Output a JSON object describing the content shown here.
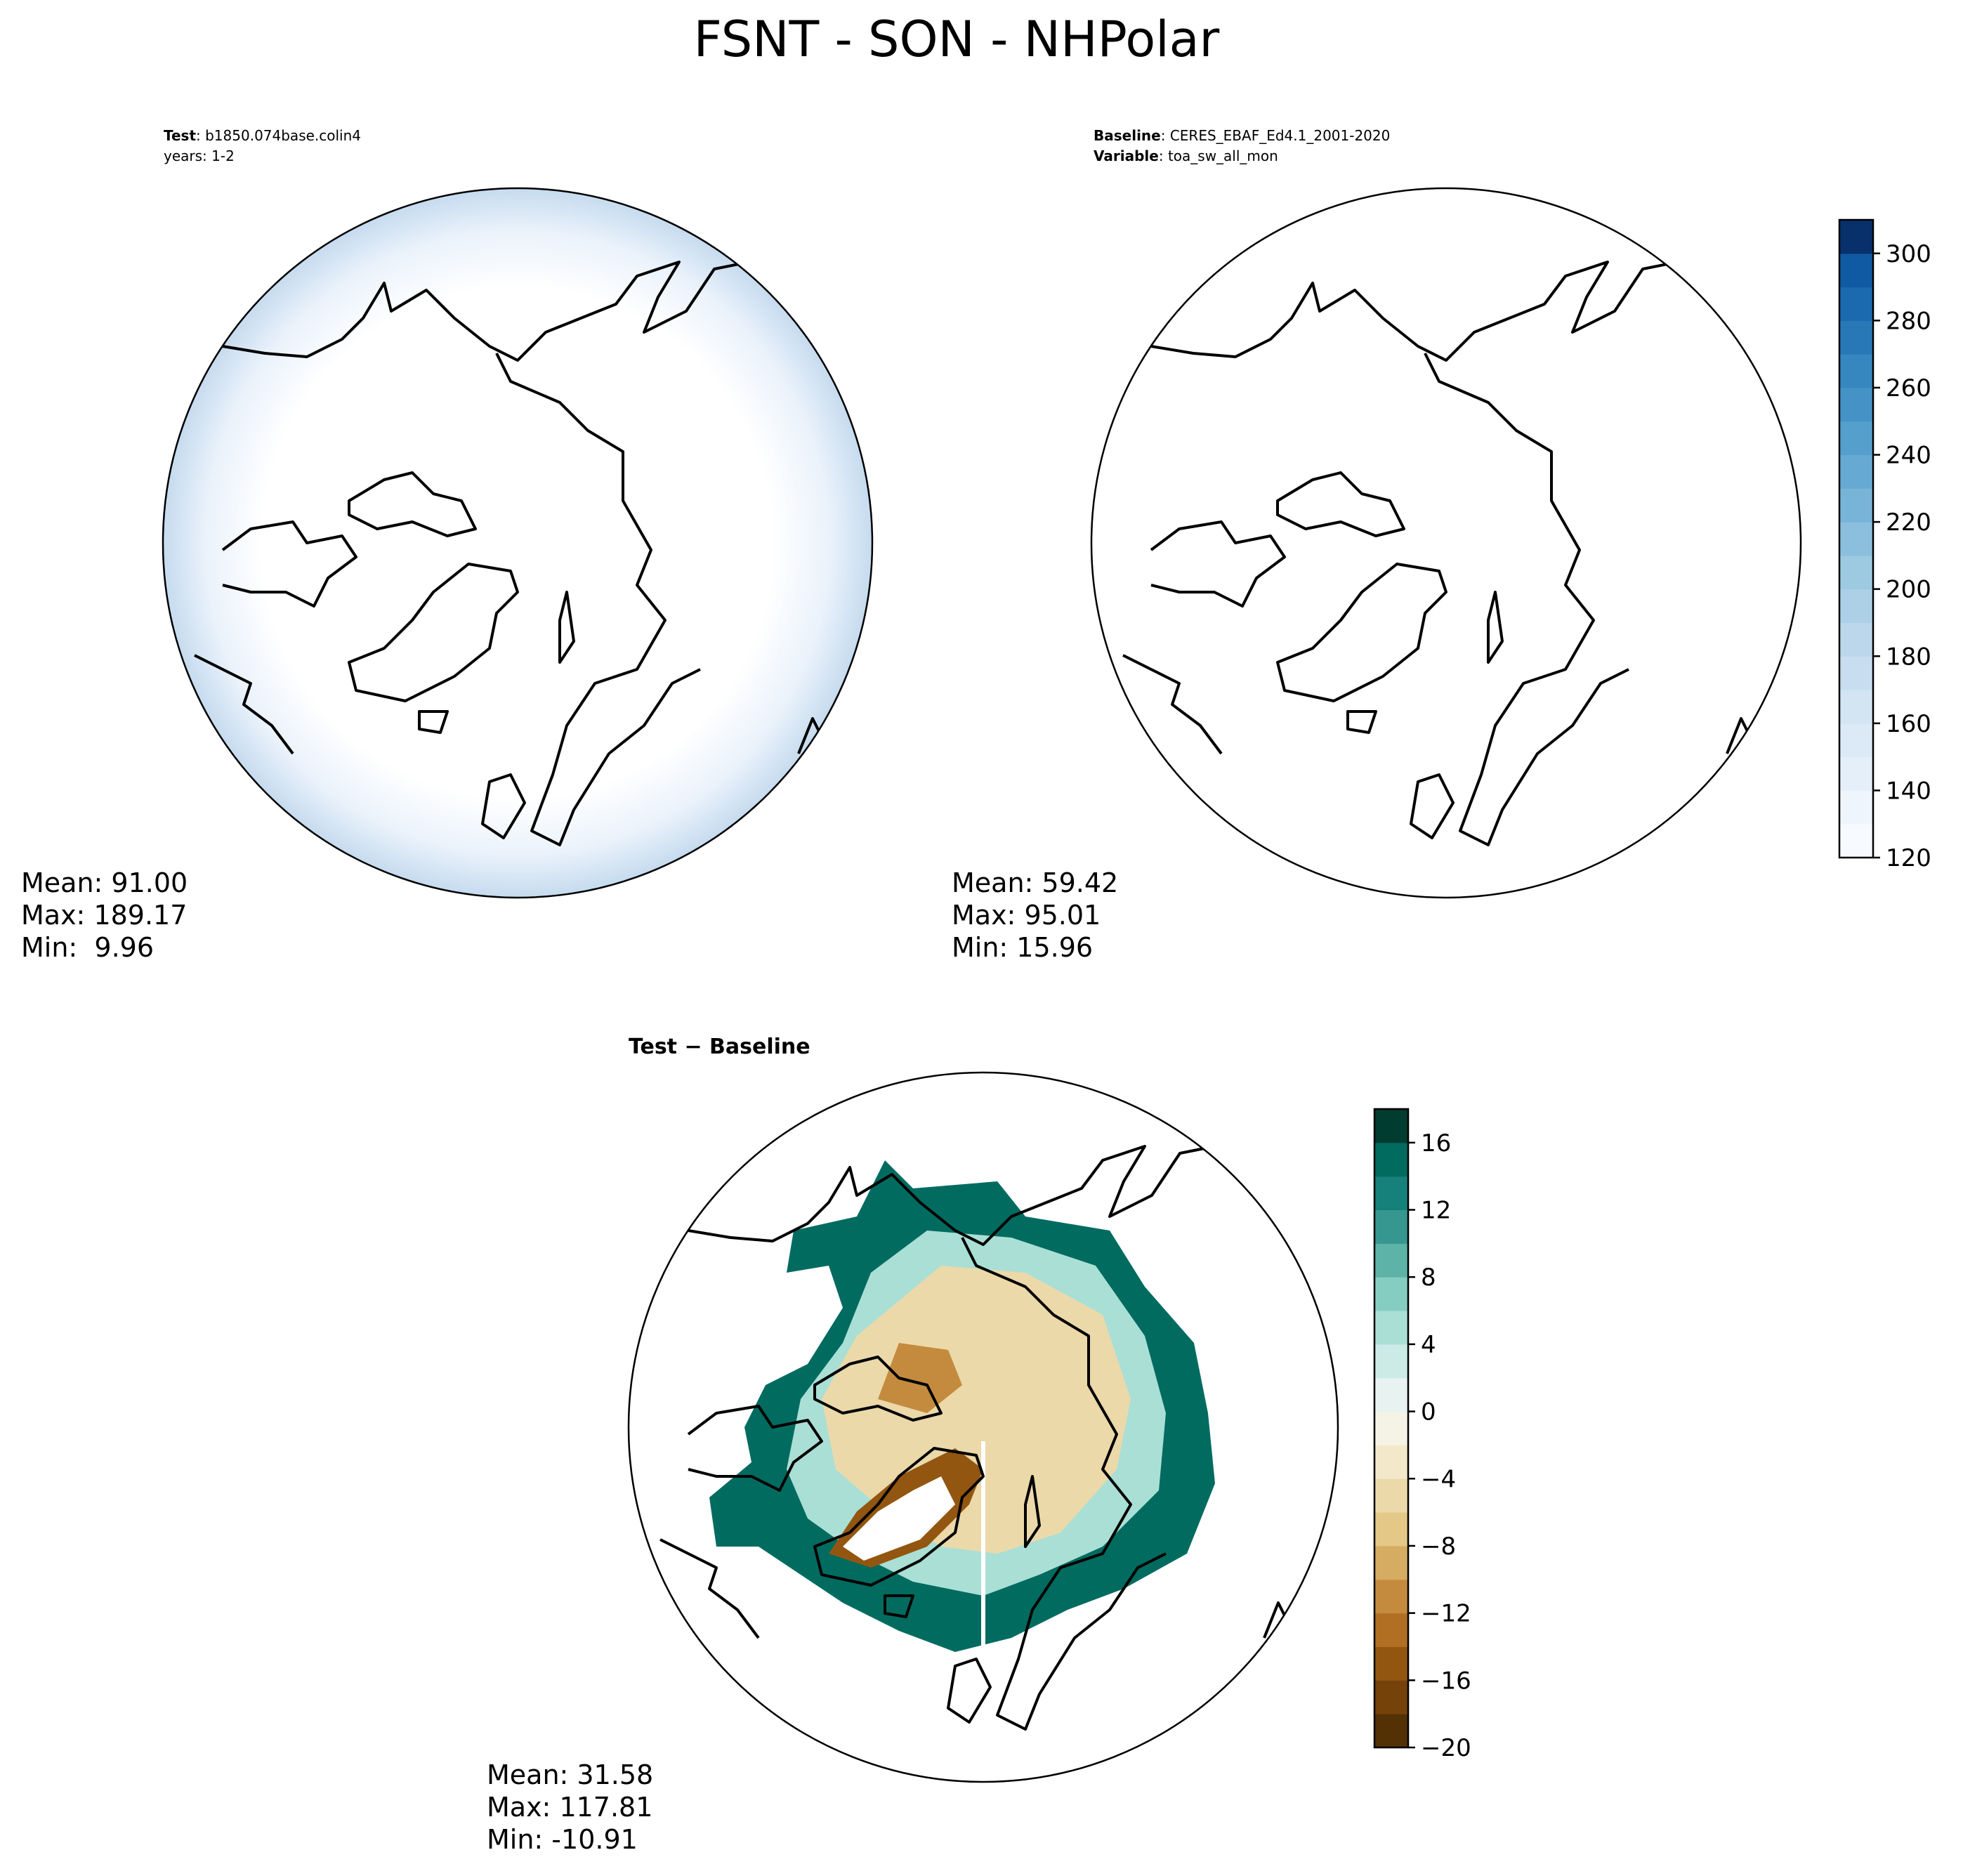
{
  "title": "FSNT - SON - NHPolar",
  "panels": [
    {
      "header": [
        {
          "label": "Test",
          "value": ": b1850.074base.colin4"
        },
        {
          "value": "years: 1-2"
        }
      ],
      "stats": [
        "Mean: 91.00",
        "Max: 189.17",
        "Min:  9.96"
      ]
    },
    {
      "header": [
        {
          "label": "Baseline",
          "value": ": CERES_EBAF_Ed4.1_2001-2020"
        },
        {
          "label": "Variable",
          "value": ": toa_sw_all_mon"
        }
      ],
      "stats": [
        "Mean: 59.42",
        "Max: 95.01",
        "Min: 15.96"
      ]
    },
    {
      "header": [
        {
          "label": "Test − Baseline"
        }
      ],
      "stats": [
        "Mean: 31.58",
        "Max: 117.81",
        "Min: -10.91"
      ]
    }
  ],
  "colorbars": [
    {
      "lim": [
        120,
        310
      ],
      "ticks": [
        120,
        140,
        160,
        180,
        200,
        220,
        240,
        260,
        280,
        300
      ],
      "colors": [
        "#f7fbff",
        "#eef5fc",
        "#e5eff9",
        "#dce9f6",
        "#d3e4f3",
        "#c9ddf0",
        "#bcd7eb",
        "#add0e6",
        "#9dc9e1",
        "#8bbfdd",
        "#78b4d8",
        "#66aad4",
        "#559fcd",
        "#4593c6",
        "#3686bf",
        "#2878b8",
        "#1b69af",
        "#0f5aa3",
        "#08306b"
      ]
    },
    {
      "lim": [
        -20,
        18
      ],
      "ticks": [
        {
          "value": -20,
          "label": "−20"
        },
        {
          "value": -16,
          "label": "−16"
        },
        {
          "value": -12,
          "label": "−12"
        },
        {
          "value": -8,
          "label": "−8"
        },
        {
          "value": -4,
          "label": "−4"
        },
        0,
        4,
        8,
        12,
        16
      ],
      "colors": [
        "#543005",
        "#754209",
        "#935610",
        "#b06f22",
        "#c48b3e",
        "#d6ac62",
        "#e3c888",
        "#ecd9a9",
        "#f3e8c9",
        "#f5f2e6",
        "#e8f3f1",
        "#cdebe6",
        "#aadfd6",
        "#86cdc1",
        "#5db3a8",
        "#35978f",
        "#15817a",
        "#016b60",
        "#003c30"
      ]
    }
  ]
}
